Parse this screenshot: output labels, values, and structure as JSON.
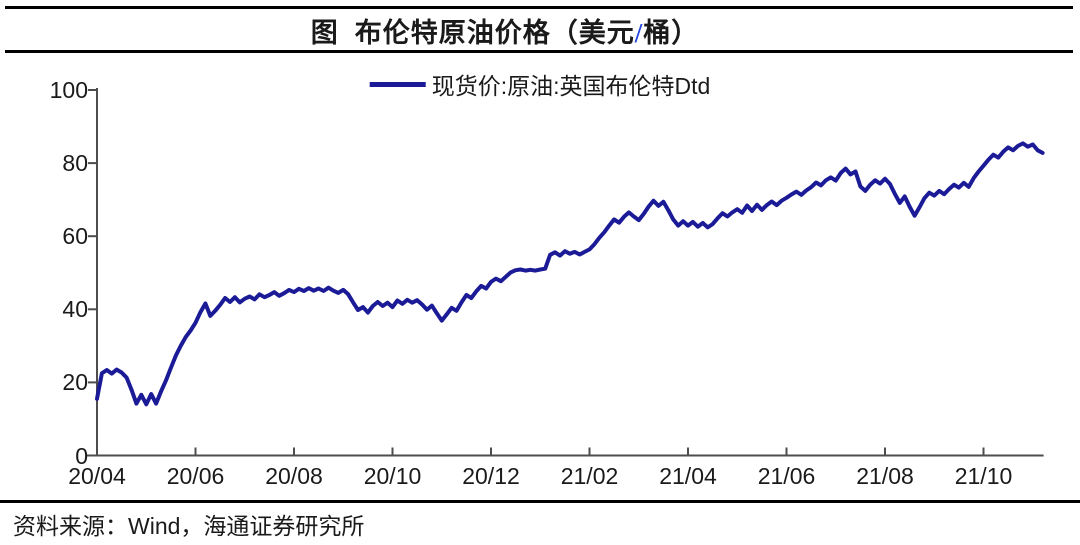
{
  "title": {
    "t1": "图",
    "t2": "布伦特原油价格（美元",
    "slash": "/",
    "t3": "桶）"
  },
  "legend": {
    "label": "现货价:原油:英国布伦特Dtd"
  },
  "footer": {
    "source_prefix": "资料来源：",
    "source_wind": "Wind",
    "source_rest": "，海通证券研究所"
  },
  "colors": {
    "line": "#1b1b97",
    "slash_blue": "#2244dd",
    "axis": "#4d4d4d",
    "rule": "#000000",
    "text": "#1a1a1a"
  },
  "chart_data": {
    "type": "line",
    "title": "布伦特原油价格（美元/桶）",
    "ylabel": "美元/桶",
    "xlabel": "",
    "ylim": [
      0,
      100
    ],
    "y_ticks": [
      0,
      20,
      40,
      60,
      80,
      100
    ],
    "x_tick_labels": [
      "20/04",
      "20/06",
      "20/08",
      "20/10",
      "20/12",
      "21/02",
      "21/04",
      "21/06",
      "21/08",
      "21/10"
    ],
    "x_start": "2020-04",
    "x_end": "2021-11",
    "x_step_months": 0.1,
    "grid": false,
    "legend_position": "top-center",
    "series": [
      {
        "name": "现货价:原油:英国布伦特Dtd",
        "color": "#1b1b97",
        "values": [
          15.5,
          22.5,
          23.4,
          22.4,
          23.5,
          22.7,
          21.3,
          18.0,
          14.2,
          16.6,
          14.0,
          16.8,
          14.2,
          17.5,
          20.5,
          24.0,
          27.3,
          30.0,
          32.4,
          34.2,
          36.3,
          39.2,
          41.6,
          38.2,
          39.6,
          41.2,
          43.1,
          42.0,
          43.3,
          41.9,
          42.9,
          43.5,
          42.7,
          44.1,
          43.3,
          43.9,
          44.7,
          43.7,
          44.4,
          45.3,
          44.7,
          45.6,
          45.0,
          45.8,
          45.1,
          45.7,
          45.0,
          45.9,
          45.1,
          44.5,
          45.3,
          44.1,
          41.9,
          39.8,
          40.6,
          39.1,
          40.9,
          42.0,
          40.9,
          41.8,
          40.6,
          42.4,
          41.5,
          42.6,
          41.8,
          42.5,
          41.3,
          39.9,
          41.0,
          38.9,
          36.9,
          38.6,
          40.4,
          39.6,
          41.9,
          43.9,
          43.1,
          44.9,
          46.4,
          45.7,
          47.5,
          48.4,
          47.7,
          48.9,
          50.1,
          50.7,
          50.9,
          50.6,
          50.8,
          50.6,
          50.9,
          51.1,
          54.9,
          55.6,
          54.7,
          55.9,
          55.2,
          55.7,
          55.0,
          55.7,
          56.4,
          57.8,
          59.6,
          61.1,
          62.9,
          64.6,
          63.7,
          65.3,
          66.5,
          65.4,
          64.4,
          66.1,
          68.1,
          69.7,
          68.3,
          69.4,
          67.1,
          64.6,
          62.9,
          64.1,
          62.9,
          63.9,
          62.6,
          63.6,
          62.4,
          63.3,
          64.9,
          66.3,
          65.4,
          66.5,
          67.4,
          66.4,
          68.4,
          66.9,
          68.6,
          67.2,
          68.5,
          69.5,
          68.5,
          69.7,
          70.5,
          71.4,
          72.2,
          71.3,
          72.5,
          73.4,
          74.7,
          73.9,
          75.3,
          76.1,
          75.2,
          77.3,
          78.5,
          76.9,
          77.7,
          73.6,
          72.4,
          74.1,
          75.3,
          74.4,
          75.7,
          74.3,
          71.6,
          69.1,
          70.9,
          68.1,
          65.6,
          67.9,
          70.4,
          71.9,
          71.1,
          72.4,
          71.5,
          72.9,
          74.1,
          73.3,
          74.6,
          73.5,
          75.9,
          77.7,
          79.3,
          80.9,
          82.3,
          81.5,
          83.1,
          84.3,
          83.5,
          84.7,
          85.4,
          84.5,
          85.1,
          83.5,
          82.8
        ]
      }
    ]
  }
}
